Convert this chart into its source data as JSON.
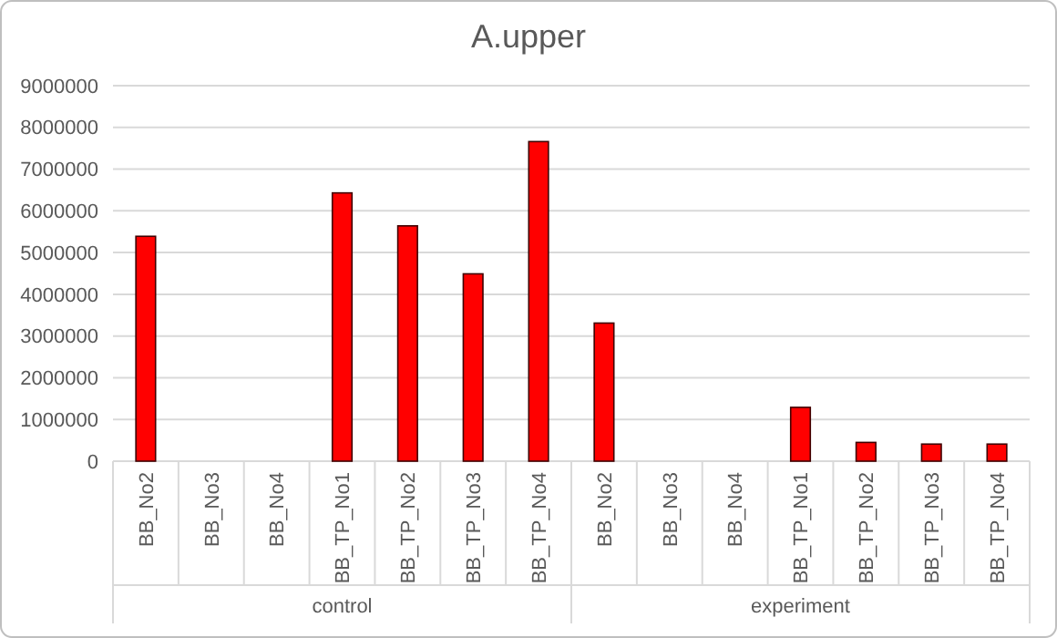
{
  "chart_data": {
    "type": "bar",
    "title": "A.upper",
    "categories": [
      "BB_No2",
      "BB_No3",
      "BB_No4",
      "BB_TP_No1",
      "BB_TP_No2",
      "BB_TP_No3",
      "BB_TP_No4",
      "BB_No2",
      "BB_No3",
      "BB_No4",
      "BB_TP_No1",
      "BB_TP_No2",
      "BB_TP_No3",
      "BB_TP_No4"
    ],
    "values": [
      5390000,
      0,
      0,
      6430000,
      5640000,
      4490000,
      7660000,
      3310000,
      0,
      0,
      1290000,
      450000,
      410000,
      410000
    ],
    "color": "#ff0000",
    "ylim": [
      0,
      9000000
    ],
    "yticks": [
      0,
      1000000,
      2000000,
      3000000,
      4000000,
      5000000,
      6000000,
      7000000,
      8000000,
      9000000
    ],
    "grid": "y",
    "annotations": [
      "control",
      "experiment"
    ]
  }
}
